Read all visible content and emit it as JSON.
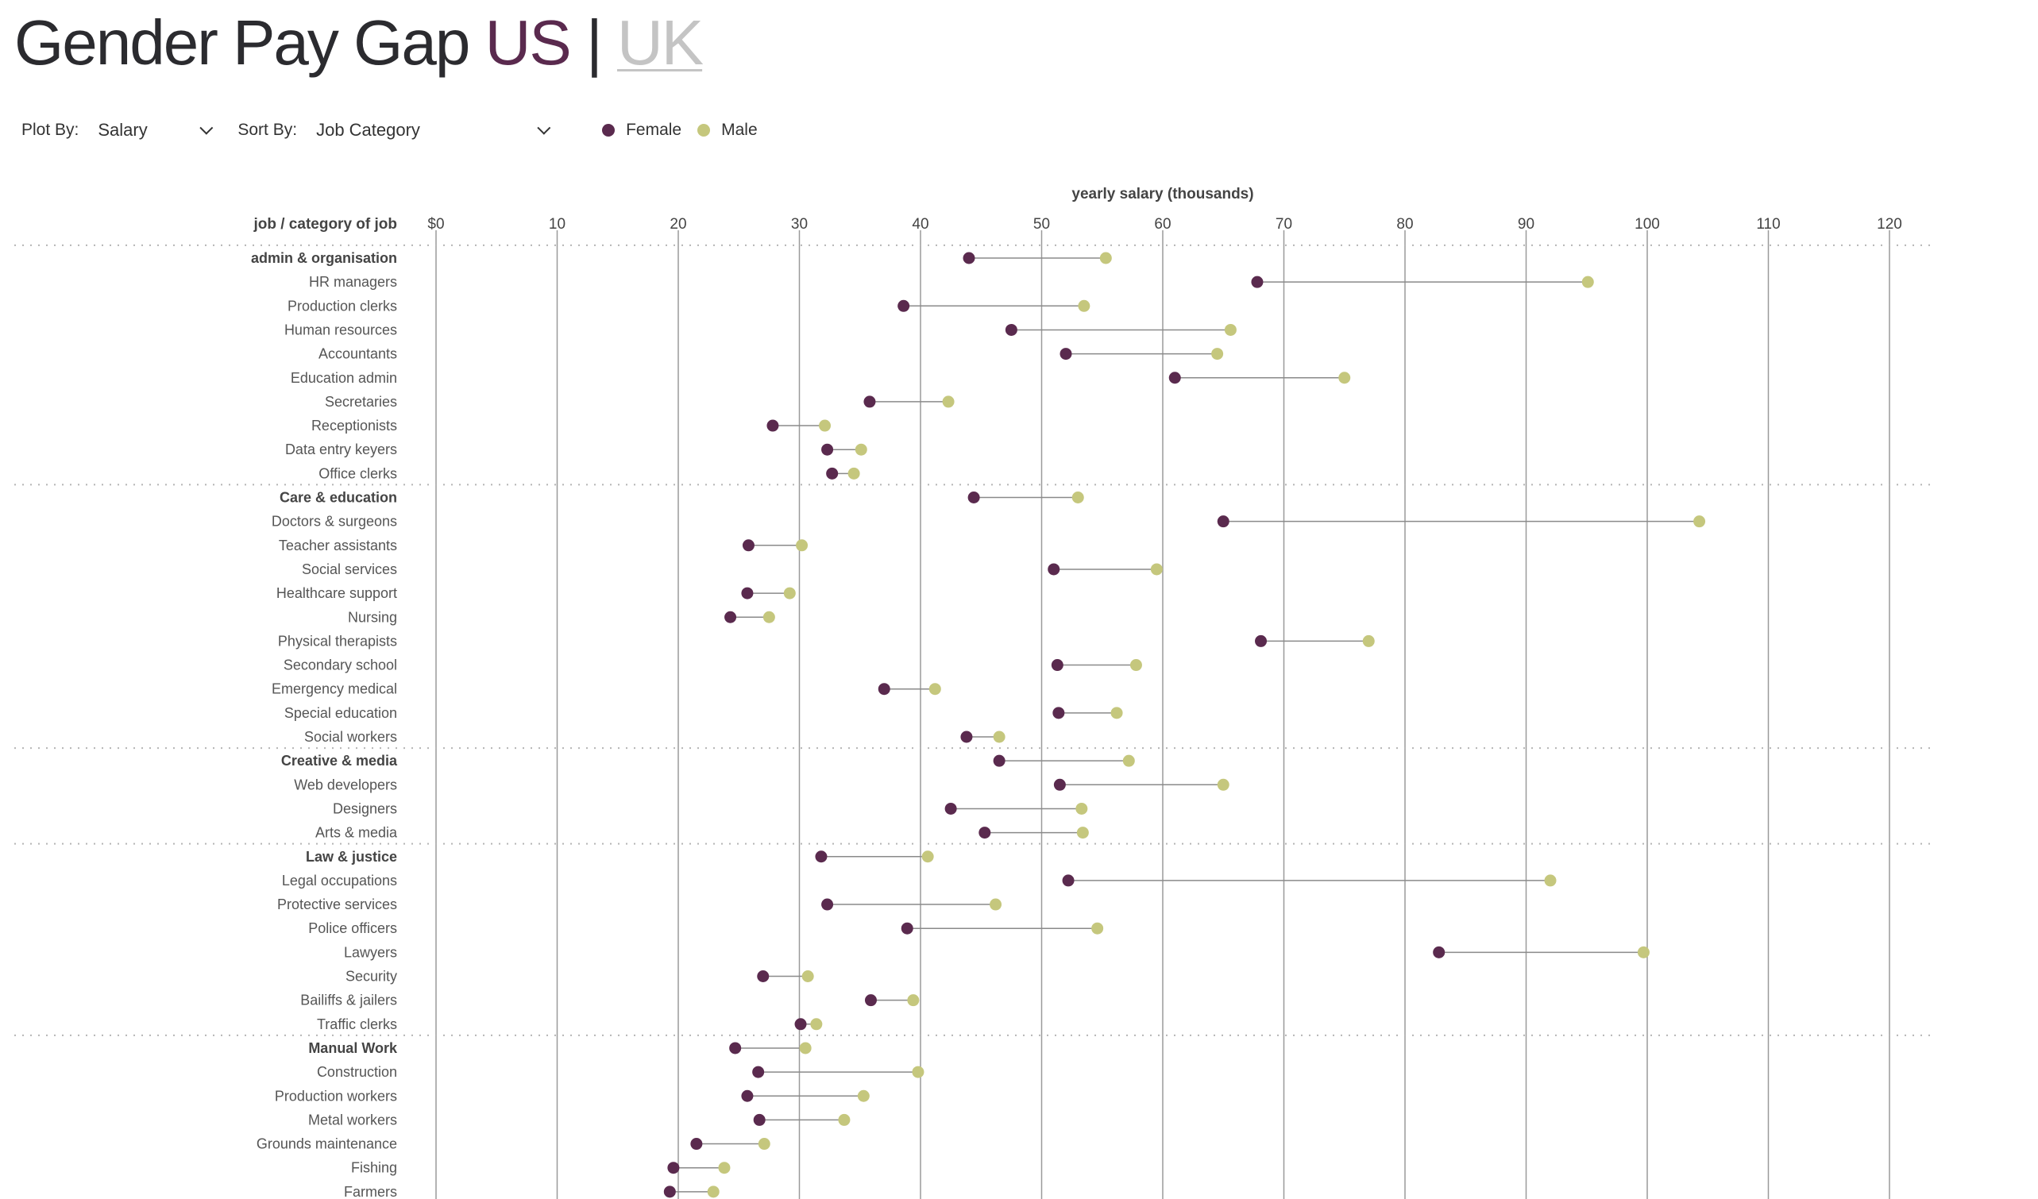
{
  "header": {
    "title_main": "Gender Pay Gap",
    "title_us": "US",
    "title_sep": "|",
    "title_uk": "UK"
  },
  "controls": {
    "plot_by_label": "Plot By:",
    "plot_by_value": "Salary",
    "sort_by_label": "Sort By:",
    "sort_by_value": "Job Category",
    "legend_female": "Female",
    "legend_male": "Male"
  },
  "colors": {
    "female": "#5a2a4e",
    "male": "#c5c77d",
    "gridline": "#9a9a9a",
    "connector": "#8a8a8a",
    "separator": "#b5b5b5"
  },
  "chart_data": {
    "type": "dumbbell",
    "xlabel": "yearly salary (thousands)",
    "ylabel": "job / category of job",
    "xlim": [
      0,
      120
    ],
    "xticks": [
      "$0",
      "10",
      "20",
      "30",
      "40",
      "50",
      "60",
      "70",
      "80",
      "90",
      "100",
      "110",
      "120"
    ],
    "series": [
      {
        "name": "Female"
      },
      {
        "name": "Male"
      }
    ],
    "rows": [
      {
        "label": "admin & organisation",
        "category": true,
        "female": 44.0,
        "male": 55.3
      },
      {
        "label": "HR managers",
        "female": 67.8,
        "male": 95.1
      },
      {
        "label": "Production clerks",
        "female": 38.6,
        "male": 53.5
      },
      {
        "label": "Human resources",
        "female": 47.5,
        "male": 65.6
      },
      {
        "label": "Accountants",
        "female": 52.0,
        "male": 64.5
      },
      {
        "label": "Education admin",
        "female": 61.0,
        "male": 75.0
      },
      {
        "label": "Secretaries",
        "female": 35.8,
        "male": 42.3
      },
      {
        "label": "Receptionists",
        "female": 27.8,
        "male": 32.1
      },
      {
        "label": "Data entry keyers",
        "female": 32.3,
        "male": 35.1
      },
      {
        "label": "Office clerks",
        "female": 32.7,
        "male": 34.5
      },
      {
        "label": "Care & education",
        "category": true,
        "female": 44.4,
        "male": 53.0
      },
      {
        "label": "Doctors & surgeons",
        "female": 65.0,
        "male": 104.3
      },
      {
        "label": "Teacher assistants",
        "female": 25.8,
        "male": 30.2
      },
      {
        "label": "Social services",
        "female": 51.0,
        "male": 59.5
      },
      {
        "label": "Healthcare support",
        "female": 25.7,
        "male": 29.2
      },
      {
        "label": "Nursing",
        "female": 24.3,
        "male": 27.5
      },
      {
        "label": "Physical therapists",
        "female": 68.1,
        "male": 77.0
      },
      {
        "label": "Secondary school",
        "female": 51.3,
        "male": 57.8
      },
      {
        "label": "Emergency medical",
        "female": 37.0,
        "male": 41.2
      },
      {
        "label": "Special education",
        "female": 51.4,
        "male": 56.2
      },
      {
        "label": "Social workers",
        "female": 43.8,
        "male": 46.5
      },
      {
        "label": "Creative & media",
        "category": true,
        "female": 46.5,
        "male": 57.2
      },
      {
        "label": "Web developers",
        "female": 51.5,
        "male": 65.0
      },
      {
        "label": "Designers",
        "female": 42.5,
        "male": 53.3
      },
      {
        "label": "Arts & media",
        "female": 45.3,
        "male": 53.4
      },
      {
        "label": "Law & justice",
        "category": true,
        "female": 31.8,
        "male": 40.6
      },
      {
        "label": "Legal occupations",
        "female": 52.2,
        "male": 92.0
      },
      {
        "label": "Protective services",
        "female": 32.3,
        "male": 46.2
      },
      {
        "label": "Police officers",
        "female": 38.9,
        "male": 54.6
      },
      {
        "label": "Lawyers",
        "female": 82.8,
        "male": 99.7
      },
      {
        "label": "Security",
        "female": 27.0,
        "male": 30.7
      },
      {
        "label": "Bailiffs & jailers",
        "female": 35.9,
        "male": 39.4
      },
      {
        "label": "Traffic clerks",
        "female": 30.1,
        "male": 31.4
      },
      {
        "label": "Manual Work",
        "category": true,
        "female": 24.7,
        "male": 30.5
      },
      {
        "label": "Construction",
        "female": 26.6,
        "male": 39.8
      },
      {
        "label": "Production workers",
        "female": 25.7,
        "male": 35.3
      },
      {
        "label": "Metal workers",
        "female": 26.7,
        "male": 33.7
      },
      {
        "label": "Grounds maintenance",
        "female": 21.5,
        "male": 27.1
      },
      {
        "label": "Fishing",
        "female": 19.6,
        "male": 23.8
      },
      {
        "label": "Farmers",
        "female": 19.3,
        "male": 22.9
      }
    ]
  }
}
